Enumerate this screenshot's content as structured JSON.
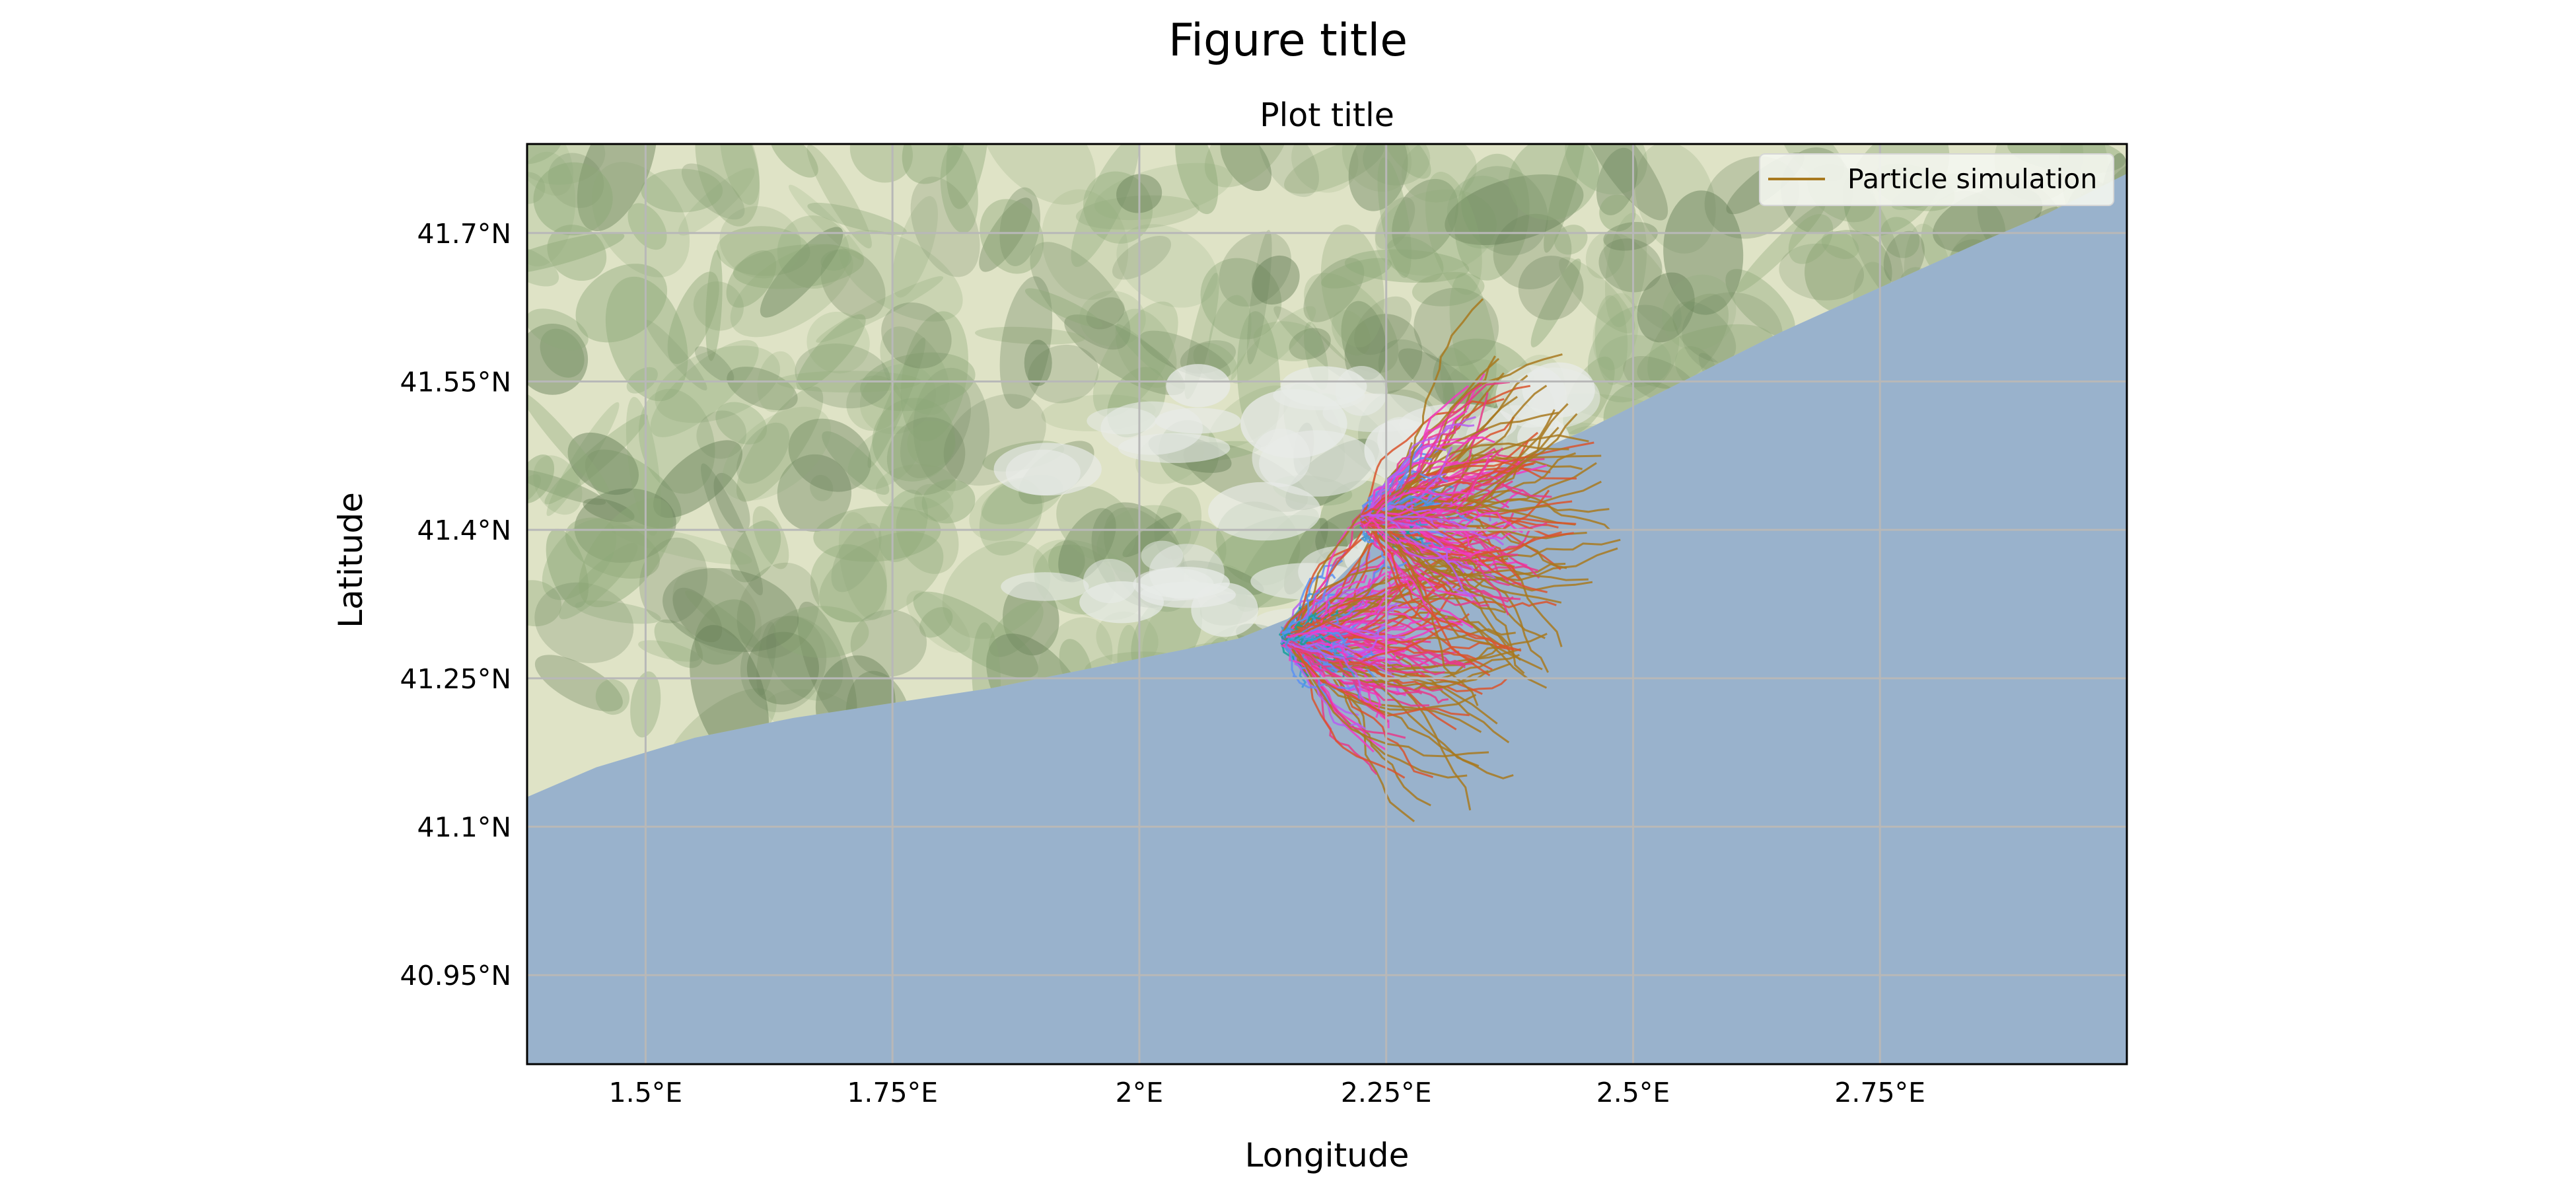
{
  "figure_title": "Figure title",
  "chart_data": {
    "type": "map-trajectories",
    "title": "Plot title",
    "xlabel": "Longitude",
    "ylabel": "Latitude",
    "xlim": [
      1.38,
      3.0
    ],
    "ylim": [
      40.86,
      41.79
    ],
    "x_ticks": [
      {
        "value": 1.5,
        "label": "1.5°E"
      },
      {
        "value": 1.75,
        "label": "1.75°E"
      },
      {
        "value": 2.0,
        "label": "2°E"
      },
      {
        "value": 2.25,
        "label": "2.25°E"
      },
      {
        "value": 2.5,
        "label": "2.5°E"
      },
      {
        "value": 2.75,
        "label": "2.75°E"
      }
    ],
    "y_ticks": [
      {
        "value": 41.7,
        "label": "41.7°N"
      },
      {
        "value": 41.55,
        "label": "41.55°N"
      },
      {
        "value": 41.4,
        "label": "41.4°N"
      },
      {
        "value": 41.25,
        "label": "41.25°N"
      },
      {
        "value": 41.1,
        "label": "41.1°N"
      },
      {
        "value": 40.95,
        "label": "40.95°N"
      }
    ],
    "grid": true,
    "legend": {
      "placement": "top-right",
      "entries": [
        {
          "label": "Particle simulation",
          "color": "#a8791f"
        }
      ]
    },
    "coastline": [
      [
        1.38,
        41.13
      ],
      [
        1.45,
        41.16
      ],
      [
        1.55,
        41.19
      ],
      [
        1.65,
        41.21
      ],
      [
        1.75,
        41.225
      ],
      [
        1.85,
        41.24
      ],
      [
        1.95,
        41.26
      ],
      [
        2.05,
        41.28
      ],
      [
        2.1,
        41.29
      ],
      [
        2.15,
        41.31
      ],
      [
        2.18,
        41.33
      ],
      [
        2.21,
        41.36
      ],
      [
        2.23,
        41.38
      ],
      [
        2.26,
        41.41
      ],
      [
        2.3,
        41.44
      ],
      [
        2.38,
        41.47
      ],
      [
        2.45,
        41.5
      ],
      [
        2.55,
        41.55
      ],
      [
        2.65,
        41.6
      ],
      [
        2.75,
        41.645
      ],
      [
        2.85,
        41.69
      ],
      [
        2.92,
        41.72
      ],
      [
        3.0,
        41.76
      ]
    ],
    "sources": [
      {
        "lon": 2.15,
        "lat": 41.29
      },
      {
        "lon": 2.23,
        "lat": 41.41
      }
    ],
    "colors": {
      "sea": "#99b2cc",
      "land_low": "#dfe3c6",
      "urban": "#e8ebe8",
      "forest": "#8da878",
      "forest_dark": "#667f57",
      "grid": "#b8b8b8",
      "particle_palette": [
        "#8a9f00",
        "#13a19a",
        "#3d9bd6",
        "#5b91f2",
        "#b55ef2",
        "#f13ac3",
        "#e63a8a",
        "#d9532d",
        "#a8791f"
      ]
    }
  }
}
